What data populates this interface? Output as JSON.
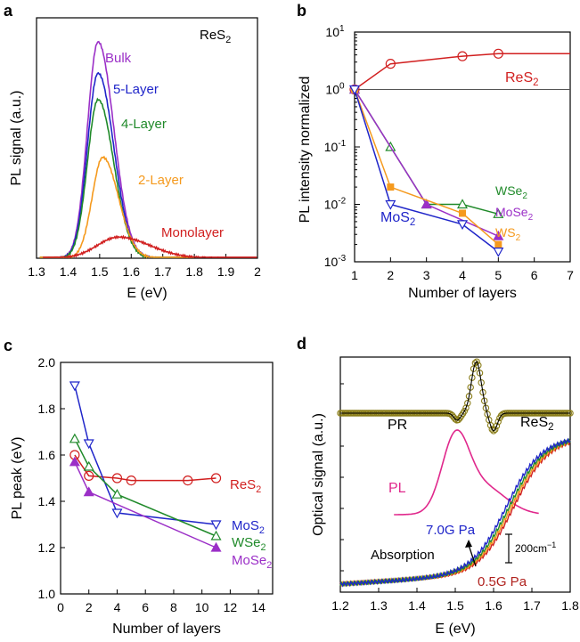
{
  "figure": {
    "colors": {
      "red": "#d11f1f",
      "blue": "#1f25c9",
      "green": "#208a2a",
      "orange": "#f59a1e",
      "purple": "#9b2fc7",
      "olive": "#8a7d18",
      "magenta": "#e0288c"
    }
  },
  "chart_data": [
    {
      "panel": "a",
      "type": "line",
      "xlabel": "E (eV)",
      "ylabel": "PL signal (a.u.)",
      "xlim": [
        1.3,
        2.0
      ],
      "x_ticks": [
        "1.3",
        "1.4",
        "1.5",
        "1.6",
        "1.7",
        "1.8",
        "1.9",
        "2"
      ],
      "material_label": "ReS2",
      "y_ticks_shown": false,
      "series": [
        {
          "name": "Bulk",
          "color": "purple",
          "peak_x": 1.495,
          "peak_y": 0.9,
          "x_start": 1.32,
          "x_end": 1.72
        },
        {
          "name": "5-Layer",
          "color": "blue",
          "peak_x": 1.495,
          "peak_y": 0.77,
          "x_start": 1.31,
          "x_end": 1.75
        },
        {
          "name": "4-Layer",
          "color": "green",
          "peak_x": 1.495,
          "peak_y": 0.66,
          "x_start": 1.31,
          "x_end": 1.75
        },
        {
          "name": "2-Layer",
          "color": "orange",
          "peak_x": 1.51,
          "peak_y": 0.42,
          "x_start": 1.31,
          "x_end": 1.8
        },
        {
          "name": "Monolayer",
          "color": "red",
          "peak_x": 1.56,
          "peak_y": 0.088,
          "x_start": 1.32,
          "x_end": 2.0
        }
      ]
    },
    {
      "panel": "b",
      "type": "line",
      "xlabel": "Number of layers",
      "ylabel": "PL intensity normalized",
      "xlim": [
        1,
        7
      ],
      "ylim": [
        0.001,
        10
      ],
      "yscale": "log",
      "x_ticks": [
        "1",
        "2",
        "3",
        "4",
        "5",
        "6",
        "7"
      ],
      "y_ticks": [
        "10",
        "10",
        "10",
        "10",
        "10"
      ],
      "y_tick_exponents": [
        "-3",
        "-2",
        "-1",
        "0",
        "1"
      ],
      "reference_line_y": 1,
      "series": [
        {
          "name": "ReS2",
          "color": "red",
          "marker": "circle",
          "x": [
            1,
            2,
            4,
            5,
            7
          ],
          "y": [
            1.0,
            2.8,
            3.8,
            4.2,
            4.2
          ],
          "marker_count": 4
        },
        {
          "name": "WSe2",
          "color": "green",
          "marker": "triangle-up-open",
          "x": [
            1,
            2,
            3,
            4,
            5
          ],
          "y": [
            1.0,
            0.1,
            0.01,
            0.01,
            0.0068
          ]
        },
        {
          "name": "MoSe2",
          "color": "purple",
          "marker": "triangle-up-filled",
          "x": [
            1,
            3,
            5
          ],
          "y": [
            1.0,
            0.01,
            0.0028
          ]
        },
        {
          "name": "WS2",
          "color": "orange",
          "marker": "square-filled",
          "x": [
            1,
            2,
            4,
            5
          ],
          "y": [
            1.0,
            0.02,
            0.007,
            0.002
          ]
        },
        {
          "name": "MoS2",
          "color": "blue",
          "marker": "triangle-down-open",
          "x": [
            1,
            2,
            4,
            5
          ],
          "y": [
            1.0,
            0.01,
            0.0045,
            0.0015
          ]
        }
      ]
    },
    {
      "panel": "c",
      "type": "line",
      "xlabel": "Number of layers",
      "ylabel": "PL peak (eV)",
      "xlim": [
        0,
        15
      ],
      "ylim": [
        1.0,
        2.0
      ],
      "x_ticks": [
        "0",
        "2",
        "4",
        "6",
        "8",
        "10",
        "12",
        "14"
      ],
      "y_ticks": [
        "1.0",
        "1.2",
        "1.4",
        "1.6",
        "1.8",
        "2.0"
      ],
      "series": [
        {
          "name": "ReS2",
          "color": "red",
          "marker": "circle",
          "x": [
            1,
            2,
            4,
            5,
            9,
            11
          ],
          "y": [
            1.6,
            1.51,
            1.5,
            1.49,
            1.49,
            1.5
          ]
        },
        {
          "name": "MoS2",
          "color": "blue",
          "marker": "triangle-down-open",
          "x": [
            1,
            2,
            4,
            11
          ],
          "y": [
            1.9,
            1.65,
            1.35,
            1.3
          ]
        },
        {
          "name": "WSe2",
          "color": "green",
          "marker": "triangle-up-open",
          "x": [
            1,
            2,
            4,
            11
          ],
          "y": [
            1.67,
            1.55,
            1.43,
            1.25
          ]
        },
        {
          "name": "MoSe2",
          "color": "purple",
          "marker": "triangle-up-filled",
          "x": [
            1,
            2,
            11
          ],
          "y": [
            1.57,
            1.44,
            1.2
          ]
        }
      ]
    },
    {
      "panel": "d",
      "type": "line",
      "xlabel": "E (eV)",
      "ylabel": "Optical signal (a.u.)",
      "xlim": [
        1.2,
        1.8
      ],
      "x_ticks": [
        "1.2",
        "1.3",
        "1.4",
        "1.5",
        "1.6",
        "1.7",
        "1.8"
      ],
      "material_label": "ReS2",
      "labels": {
        "pr": "PR",
        "pl": "PL",
        "absorption": "Absorption",
        "pressure_high": "7.0G Pa",
        "pressure_low": "0.5G Pa",
        "scale_bar": "200cm"
      },
      "series": [
        {
          "name": "PR",
          "color": "olive",
          "marker": "circle-open",
          "feature_center_x": 1.55
        },
        {
          "name": "PL",
          "color": "magenta",
          "peak_x": 1.5,
          "x_start": 1.34,
          "x_end": 1.72
        },
        {
          "name": "7.0G Pa",
          "color": "blue"
        },
        {
          "name": "0.5G Pa",
          "color": "red"
        }
      ]
    }
  ]
}
